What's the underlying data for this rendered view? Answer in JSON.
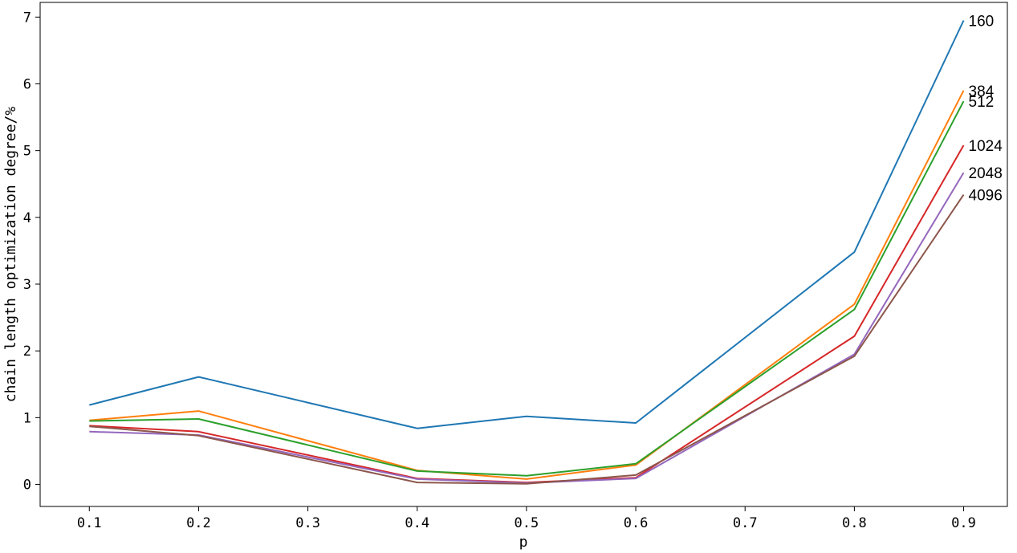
{
  "chart_data": {
    "type": "line",
    "xlabel": "p",
    "ylabel": "chain length optimization degree/%",
    "x": [
      0.1,
      0.2,
      0.4,
      0.5,
      0.6,
      0.8,
      0.9
    ],
    "xticks": [
      0.1,
      0.2,
      0.3,
      0.4,
      0.5,
      0.6,
      0.7,
      0.8,
      0.9
    ],
    "xtick_labels": [
      "0.1",
      "0.2",
      "0.3",
      "0.4",
      "0.5",
      "0.6",
      "0.7",
      "0.8",
      "0.9"
    ],
    "yticks": [
      0,
      1,
      2,
      3,
      4,
      5,
      6,
      7
    ],
    "ytick_labels": [
      "0",
      "1",
      "2",
      "3",
      "4",
      "5",
      "6",
      "7"
    ],
    "xlim": [
      0.055,
      0.94
    ],
    "ylim": [
      -0.33,
      7.22
    ],
    "grid": false,
    "series": [
      {
        "name": "160",
        "color": "#1f77b4",
        "values": [
          1.19,
          1.61,
          0.84,
          1.02,
          0.92,
          3.48,
          6.95
        ]
      },
      {
        "name": "384",
        "color": "#ff7f0e",
        "values": [
          0.96,
          1.1,
          0.21,
          0.08,
          0.29,
          2.7,
          5.9
        ]
      },
      {
        "name": "512",
        "color": "#2ca02c",
        "values": [
          0.95,
          0.98,
          0.2,
          0.13,
          0.31,
          2.62,
          5.74
        ]
      },
      {
        "name": "1024",
        "color": "#d62728",
        "values": [
          0.88,
          0.79,
          0.09,
          0.03,
          0.1,
          2.22,
          5.08
        ]
      },
      {
        "name": "2048",
        "color": "#9467bd",
        "values": [
          0.79,
          0.74,
          0.08,
          0.02,
          0.09,
          1.95,
          4.67
        ]
      },
      {
        "name": "4096",
        "color": "#8c564b",
        "values": [
          0.87,
          0.73,
          0.03,
          0.01,
          0.14,
          1.92,
          4.34
        ]
      }
    ]
  }
}
